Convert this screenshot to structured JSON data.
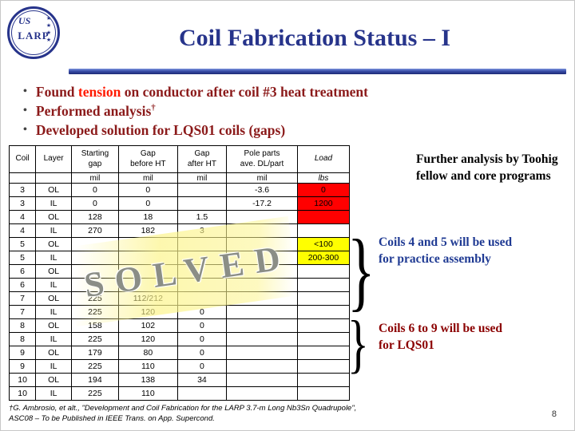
{
  "title": "Coil Fabrication Status – I",
  "page_number": "8",
  "logo": {
    "top": "US",
    "bottom": "LARP",
    "stars": "★★★★"
  },
  "bullets": {
    "marker": "•",
    "b1_pre": "Found ",
    "b1_highlight": "tension",
    "b1_post": " on conductor after coil #3 heat treatment",
    "b2_text": "Performed analysis",
    "b2_sup": "†",
    "b3_text": "Developed solution for LQS01 coils (gaps)"
  },
  "table": {
    "columns": [
      "Coil",
      "Layer",
      "Starting\ngap",
      "Gap\nbefore HT",
      "Gap\nafter HT",
      "Pole parts\nave. DL/part",
      "Load"
    ],
    "units": [
      "",
      "",
      "mil",
      "mil",
      "mil",
      "mil",
      "lbs"
    ],
    "rows": [
      {
        "cells": [
          "3",
          "OL",
          "0",
          "0",
          "",
          "-3.6",
          "0"
        ],
        "hl": {
          "6": "red"
        }
      },
      {
        "cells": [
          "3",
          "IL",
          "0",
          "0",
          "",
          "-17.2",
          "1200"
        ],
        "hl": {
          "6": "red"
        }
      },
      {
        "cells": [
          "4",
          "OL",
          "128",
          "18",
          "1.5",
          "",
          ""
        ],
        "hl": {
          "6": "red"
        }
      },
      {
        "cells": [
          "4",
          "IL",
          "270",
          "182",
          "3",
          "",
          ""
        ]
      },
      {
        "cells": [
          "5",
          "OL",
          "",
          "",
          "",
          "",
          "<100"
        ],
        "hl": {
          "6": "yellow"
        }
      },
      {
        "cells": [
          "5",
          "IL",
          "",
          "",
          "",
          "",
          "200-300"
        ],
        "hl": {
          "6": "yellow"
        }
      },
      {
        "cells": [
          "6",
          "OL",
          "",
          "",
          "",
          "",
          ""
        ]
      },
      {
        "cells": [
          "6",
          "IL",
          "",
          "",
          "",
          "",
          ""
        ]
      },
      {
        "cells": [
          "7",
          "OL",
          "225",
          "112/212",
          "",
          "",
          ""
        ]
      },
      {
        "cells": [
          "7",
          "IL",
          "225",
          "120",
          "0",
          "",
          ""
        ]
      },
      {
        "cells": [
          "8",
          "OL",
          "158",
          "102",
          "0",
          "",
          ""
        ]
      },
      {
        "cells": [
          "8",
          "IL",
          "225",
          "120",
          "0",
          "",
          ""
        ]
      },
      {
        "cells": [
          "9",
          "OL",
          "179",
          "80",
          "0",
          "",
          ""
        ]
      },
      {
        "cells": [
          "9",
          "IL",
          "225",
          "110",
          "0",
          "",
          ""
        ]
      },
      {
        "cells": [
          "10",
          "OL",
          "194",
          "138",
          "34",
          "",
          ""
        ]
      },
      {
        "cells": [
          "10",
          "IL",
          "225",
          "110",
          "",
          "",
          ""
        ]
      }
    ]
  },
  "stamp": "SOLVED",
  "annotations": {
    "further": "Further analysis by Toohig fellow and core programs",
    "coils45": "Coils 4 and 5 will be used for practice assembly",
    "coils69": "Coils 6 to 9 will be used for LQS01",
    "brace": "}"
  },
  "footnote": {
    "line1": "†G. Ambrosio, et alt., \"Development and Coil Fabrication for the LARP 3.7-m Long Nb3Sn Quadrupole\",",
    "line2": "ASC08 – To be Published in IEEE Trans. on App. Supercond."
  },
  "colors": {
    "title_blue": "#27348B",
    "bullet_maroon": "#8B1A1A",
    "tension_red": "#FF1A00",
    "note_blue": "#1F3A93",
    "note_red": "#8B0000",
    "cell_red": "#FF0000",
    "cell_yellow": "#FFFF00"
  }
}
